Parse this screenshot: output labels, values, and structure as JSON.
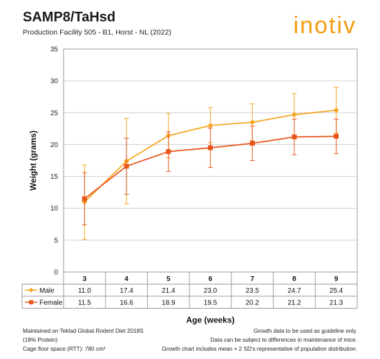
{
  "header": {
    "title": "SAMP8/TaHsd",
    "subtitle": "Production Facility 505 - B1, Horst - NL (2022)",
    "logo_text": "inotiv"
  },
  "colors": {
    "male": "#F5A623",
    "female": "#E8561C",
    "plot_border": "#9a9a9a",
    "grid": "#d0d0d0",
    "logo": "#F39C12"
  },
  "chart_data": {
    "type": "line",
    "ylabel": "Weight (grams)",
    "xlabel": "Age (weeks)",
    "ylim": [
      0,
      35
    ],
    "yticks": [
      "0",
      "5",
      "10",
      "15",
      "20",
      "25",
      "30",
      "35"
    ],
    "categories": [
      "3",
      "4",
      "5",
      "6",
      "7",
      "8",
      "9"
    ],
    "grid": "horizontal",
    "legend": "table-below",
    "error_bars": "mean ± 2 SD",
    "series": [
      {
        "name": "Male",
        "marker": "diamond",
        "values": [
          11.0,
          17.4,
          21.4,
          23.0,
          23.5,
          24.7,
          25.4
        ],
        "labels": [
          "11.0",
          "17.4",
          "21.4",
          "23.0",
          "23.5",
          "24.7",
          "25.4"
        ],
        "err_low": [
          5.1,
          10.7,
          17.9,
          20.3,
          20.6,
          21.3,
          21.8
        ],
        "err_high": [
          16.8,
          24.1,
          24.9,
          25.8,
          26.4,
          28.0,
          29.0
        ]
      },
      {
        "name": "Female",
        "marker": "square",
        "values": [
          11.5,
          16.6,
          18.9,
          19.5,
          20.2,
          21.2,
          21.3
        ],
        "labels": [
          "11.5",
          "16.6",
          "18.9",
          "19.5",
          "20.2",
          "21.2",
          "21.3"
        ],
        "err_low": [
          7.4,
          12.2,
          15.8,
          16.4,
          17.5,
          18.4,
          18.6
        ],
        "err_high": [
          15.6,
          21.0,
          22.0,
          22.6,
          22.9,
          24.0,
          24.0
        ]
      }
    ]
  },
  "footer": {
    "left": [
      "Maintained on Teklad Global Rodent Diet 2018S",
      "(18% Protein)",
      "Cage floor space (RTT): 780 cm²"
    ],
    "right": [
      "Growth data to be used as guideline only.",
      "Data can be subject to differences in maintenance of mice.",
      "Growth chart includes mean + 2 SD's representative of population distribution."
    ]
  }
}
